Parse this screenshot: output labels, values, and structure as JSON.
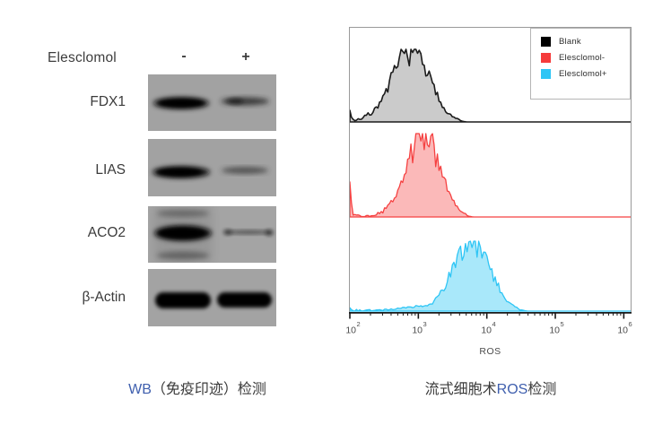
{
  "wb": {
    "treatment_label": "Elesclomol",
    "lanes": [
      "-",
      "+"
    ],
    "rows": [
      {
        "label": "FDX1",
        "bands": {
          "minus": "strong",
          "plus": "moderate"
        }
      },
      {
        "label": "LIAS",
        "bands": {
          "minus": "strong",
          "plus": "weak"
        }
      },
      {
        "label": "ACO2",
        "bands": {
          "minus": "very-strong",
          "plus": "very-weak"
        }
      },
      {
        "label": "β-Actin",
        "bands": {
          "minus": "strong",
          "plus": "strong"
        }
      }
    ],
    "caption": {
      "latin": "WB",
      "rest": "（免疫印迹）检测",
      "latin_color": "#3f5fae"
    }
  },
  "flow": {
    "legend": [
      {
        "label": "Blank",
        "color": "#000000"
      },
      {
        "label": "Elesclomol-",
        "color": "#f53b3b"
      },
      {
        "label": "Elesclomol+",
        "color": "#2ec5f5"
      }
    ],
    "caption": {
      "prefix": "流式细胞术",
      "latin": "ROS",
      "suffix": "检测",
      "latin_color": "#3f5fae"
    }
  },
  "chart_data": {
    "type": "area",
    "subtype": "flow-cytometry-histogram-stack",
    "title": "",
    "xlabel": "ROS",
    "ylabel": "",
    "x_scale": "log10",
    "x_range": [
      100,
      1000000
    ],
    "x_range_log": [
      2,
      6.1
    ],
    "grid": false,
    "legend_position": "top-right",
    "x_ticks": [
      {
        "base": "10",
        "exp": "2",
        "value": 100
      },
      {
        "base": "10",
        "exp": "3",
        "value": 1000
      },
      {
        "base": "10",
        "exp": "4",
        "value": 10000
      },
      {
        "base": "10",
        "exp": "5",
        "value": 100000
      },
      {
        "base": "10",
        "exp": "6",
        "value": 1000000
      }
    ],
    "series": [
      {
        "name": "Blank",
        "mode_ros": 780,
        "log_mode": 2.89,
        "log_sigma": 0.27,
        "peak_fraction": 0.81,
        "left_spike": 0.16,
        "tail_noise": 0.05,
        "stroke": "#1b1b1b",
        "fill": "#cbcbcb",
        "stroke_width": 1.6,
        "seed": 7
      },
      {
        "name": "Elesclomol-",
        "mode_ros": 1170,
        "log_mode": 3.07,
        "log_sigma": 0.24,
        "peak_fraction": 0.93,
        "left_spike": 0.42,
        "tail_noise": 0.04,
        "stroke": "#f54040",
        "fill": "#fbb9b9",
        "stroke_width": 1.3,
        "seed": 13
      },
      {
        "name": "Elesclomol+",
        "mode_ros": 6000,
        "log_mode": 3.78,
        "log_sigma": 0.27,
        "peak_fraction": 0.78,
        "left_spike": 0.05,
        "tail_noise": 0.025,
        "shoulder": {
          "log_mode": 3.15,
          "log_sigma": 0.28,
          "height": 0.07
        },
        "stroke": "#2ec5f5",
        "fill": "#a9e8fa",
        "stroke_width": 1.3,
        "seed": 29
      }
    ]
  }
}
